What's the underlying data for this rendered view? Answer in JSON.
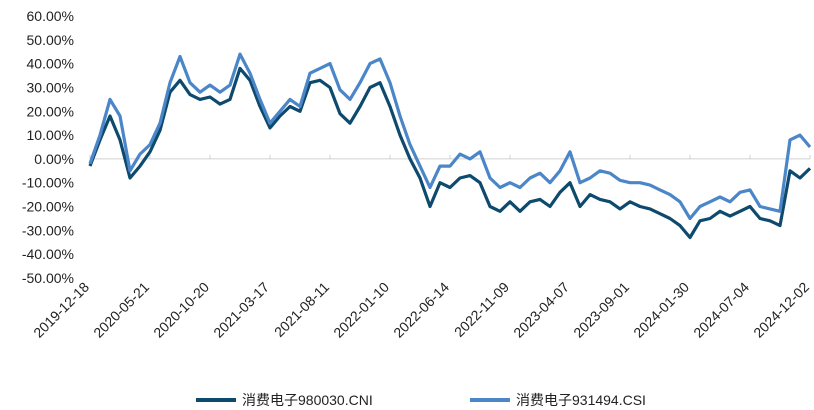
{
  "chart_data": {
    "type": "line",
    "categories": [
      "2019-12-18",
      null,
      null,
      null,
      null,
      null,
      "2020-05-21",
      null,
      null,
      null,
      null,
      null,
      "2020-10-20",
      null,
      null,
      null,
      null,
      null,
      "2021-03-17",
      null,
      null,
      null,
      null,
      null,
      "2021-08-11",
      null,
      null,
      null,
      null,
      null,
      "2022-01-10",
      null,
      null,
      null,
      null,
      null,
      "2022-06-14",
      null,
      null,
      null,
      null,
      null,
      "2022-11-09",
      null,
      null,
      null,
      null,
      null,
      "2023-04-07",
      null,
      null,
      null,
      null,
      null,
      "2023-09-01",
      null,
      null,
      null,
      null,
      null,
      "2024-01-30",
      null,
      null,
      null,
      null,
      null,
      "2024-07-04",
      null,
      null,
      null,
      null,
      null,
      "2024-12-02"
    ],
    "series": [
      {
        "name": "消费电子980030.CNI",
        "color": "#0d4a6e",
        "values": [
          -3,
          8,
          18,
          8,
          -8,
          -3,
          3,
          12,
          28,
          33,
          27,
          25,
          26,
          23,
          25,
          38,
          33,
          22,
          13,
          18,
          22,
          20,
          32,
          33,
          30,
          19,
          15,
          22,
          30,
          32,
          22,
          10,
          0,
          -8,
          -20,
          -10,
          -12,
          -8,
          -7,
          -10,
          -20,
          -22,
          -18,
          -22,
          -18,
          -17,
          -20,
          -14,
          -10,
          -20,
          -15,
          -17,
          -18,
          -21,
          -18,
          -20,
          -21,
          -23,
          -25,
          -28,
          -33,
          -26,
          -25,
          -22,
          -24,
          -22,
          -20,
          -25,
          -26,
          -28,
          -5,
          -8,
          -4
        ]
      },
      {
        "name": "消费电子931494.CSI",
        "color": "#4a86c8",
        "values": [
          -2,
          10,
          25,
          18,
          -5,
          2,
          6,
          15,
          32,
          43,
          32,
          28,
          31,
          28,
          31,
          44,
          36,
          25,
          15,
          20,
          25,
          22,
          36,
          38,
          40,
          29,
          25,
          32,
          40,
          42,
          32,
          18,
          6,
          -3,
          -12,
          -3,
          -3,
          2,
          0,
          3,
          -8,
          -12,
          -10,
          -12,
          -8,
          -6,
          -10,
          -5,
          3,
          -10,
          -8,
          -5,
          -6,
          -9,
          -10,
          -10,
          -11,
          -13,
          -15,
          -18,
          -25,
          -20,
          -18,
          -16,
          -18,
          -14,
          -13,
          -20,
          -21,
          -22,
          8,
          10,
          5
        ]
      }
    ],
    "ylim": [
      -50,
      60
    ],
    "yticks": [
      {
        "value": -50,
        "label": "-50.00%"
      },
      {
        "value": -40,
        "label": "-40.00%"
      },
      {
        "value": -30,
        "label": "-30.00%"
      },
      {
        "value": -20,
        "label": "-20.00%"
      },
      {
        "value": -10,
        "label": "-10.00%"
      },
      {
        "value": 0,
        "label": "0.00%"
      },
      {
        "value": 10,
        "label": "10.00%"
      },
      {
        "value": 20,
        "label": "20.00%"
      },
      {
        "value": 30,
        "label": "30.00%"
      },
      {
        "value": 40,
        "label": "40.00%"
      },
      {
        "value": 50,
        "label": "50.00%"
      },
      {
        "value": 60,
        "label": "60.00%"
      }
    ],
    "legend": "bottom"
  }
}
